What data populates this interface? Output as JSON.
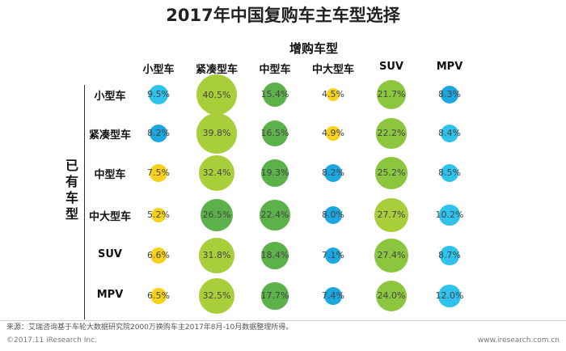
{
  "chart_data": {
    "type": "bubble-matrix",
    "title": "2017年中国复购车主车型选择",
    "column_group_label": "增购车型",
    "row_group_label": "已有车型",
    "columns": [
      "小型车",
      "紧凑型车",
      "中型车",
      "中大型车",
      "SUV",
      "MPV"
    ],
    "rows": [
      "小型车",
      "紧凑型车",
      "中型车",
      "中大型车",
      "SUV",
      "MPV"
    ],
    "values": [
      [
        9.5,
        40.5,
        15.4,
        4.5,
        21.7,
        8.3
      ],
      [
        8.2,
        39.8,
        16.5,
        4.9,
        22.2,
        8.4
      ],
      [
        7.5,
        32.4,
        19.3,
        8.2,
        25.2,
        8.5
      ],
      [
        5.2,
        26.5,
        22.4,
        8.0,
        27.7,
        10.2
      ],
      [
        6.6,
        31.8,
        18.4,
        7.1,
        27.4,
        8.7
      ],
      [
        6.5,
        32.5,
        17.7,
        7.4,
        24.0,
        12.0
      ]
    ],
    "labels": [
      [
        "9.5%",
        "40.5%",
        "15.4%",
        "4.5%",
        "21.7%",
        "8.3%"
      ],
      [
        "8.2%",
        "39.8%",
        "16.5%",
        "4.9%",
        "22.2%",
        "8.4%"
      ],
      [
        "7.5%",
        "32.4%",
        "19.3%",
        "8.2%",
        "25.2%",
        "8.5%"
      ],
      [
        "5.2%",
        "26.5%",
        "22.4%",
        "8.0%",
        "27.7%",
        "10.2%"
      ],
      [
        "6.6%",
        "31.8%",
        "18.4%",
        "7.1%",
        "27.4%",
        "8.7%"
      ],
      [
        "6.5%",
        "32.5%",
        "17.7%",
        "7.4%",
        "24.0%",
        "12.0%"
      ]
    ],
    "colors": [
      [
        "#2fc3ec",
        "#a8cf3a",
        "#5cb14a",
        "#f6d21c",
        "#8cc63f",
        "#1da7e0"
      ],
      [
        "#1da7e0",
        "#a8cf3a",
        "#5cb14a",
        "#f6d21c",
        "#8cc63f",
        "#2fc3ec"
      ],
      [
        "#f6d21c",
        "#a8cf3a",
        "#5cb14a",
        "#1da7e0",
        "#8cc63f",
        "#2fc3ec"
      ],
      [
        "#f6d21c",
        "#5cb14a",
        "#5cb14a",
        "#1da7e0",
        "#a8cf3a",
        "#2fc3ec"
      ],
      [
        "#f6d21c",
        "#a8cf3a",
        "#5cb14a",
        "#1da7e0",
        "#8cc63f",
        "#2fc3ec"
      ],
      [
        "#f6d21c",
        "#a8cf3a",
        "#5cb14a",
        "#1da7e0",
        "#8cc63f",
        "#2fc3ec"
      ]
    ]
  },
  "source_text": "来源：艾瑞咨询基于车轮大数据研究院2000万换购车主2017年8月-10月数据整理所得。",
  "footer_left": "©2017.11 iResearch Inc.",
  "footer_right": "www.iresearch.com.cn"
}
